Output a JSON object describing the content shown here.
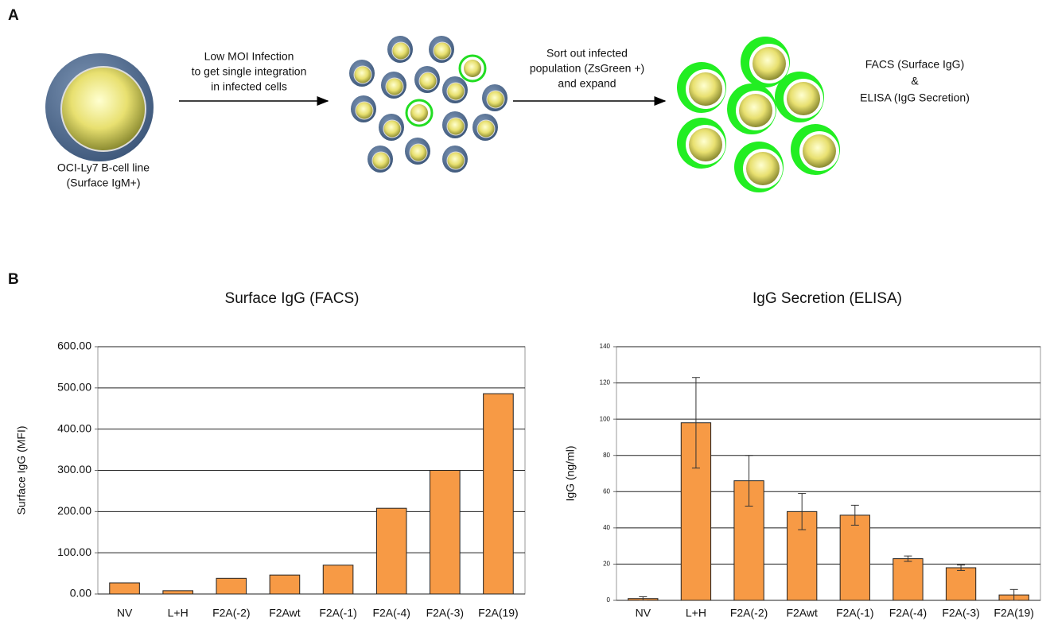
{
  "panel_a": {
    "label": "A",
    "start_cell": [
      "OCI-Ly7 B-cell line",
      "(Surface IgM+)"
    ],
    "step1": [
      "Low MOI Infection",
      "to get single integration",
      "in infected cells"
    ],
    "step2": [
      "Sort out infected",
      "population (ZsGreen +)",
      "and expand"
    ],
    "readout": [
      "FACS (Surface IgG)",
      "&",
      "ELISA (IgG Secretion)"
    ]
  },
  "panel_b": {
    "label": "B"
  },
  "chart_data": [
    {
      "type": "bar",
      "title": "Surface IgG (FACS)",
      "y_label": "Surface IgG (MFI)",
      "categories": [
        "NV",
        "L+H",
        "F2A(-2)",
        "F2Awt",
        "F2A(-1)",
        "F2A(-4)",
        "F2A(-3)",
        "F2A(19)"
      ],
      "values": [
        27,
        8,
        38,
        46,
        70,
        208,
        300,
        486
      ],
      "color": "#f79a45",
      "ylim": [
        0,
        600
      ],
      "yticks": [
        {
          "value": 0,
          "label": "0.00"
        },
        {
          "value": 100,
          "label": "100.00"
        },
        {
          "value": 200,
          "label": "200.00"
        },
        {
          "value": 300,
          "label": "300.00"
        },
        {
          "value": 400,
          "label": "400.00"
        },
        {
          "value": 500,
          "label": "500.00"
        },
        {
          "value": 600,
          "label": "600.00"
        }
      ],
      "grid": true
    },
    {
      "type": "bar",
      "title": "IgG Secretion (ELISA)",
      "y_label": "IgG (ng/ml)",
      "categories": [
        "NV",
        "L+H",
        "F2A(-2)",
        "F2Awt",
        "F2A(-1)",
        "F2A(-4)",
        "F2A(-3)",
        "F2A(19)"
      ],
      "values": [
        1,
        98,
        66,
        49,
        47,
        23,
        18,
        3
      ],
      "errors": [
        1,
        25,
        14,
        10,
        5.5,
        1.5,
        1.5,
        3
      ],
      "color": "#f79a45",
      "ylim": [
        0,
        140
      ],
      "yticks": [
        0,
        20,
        40,
        60,
        80,
        100,
        120,
        140
      ],
      "grid": true
    }
  ]
}
